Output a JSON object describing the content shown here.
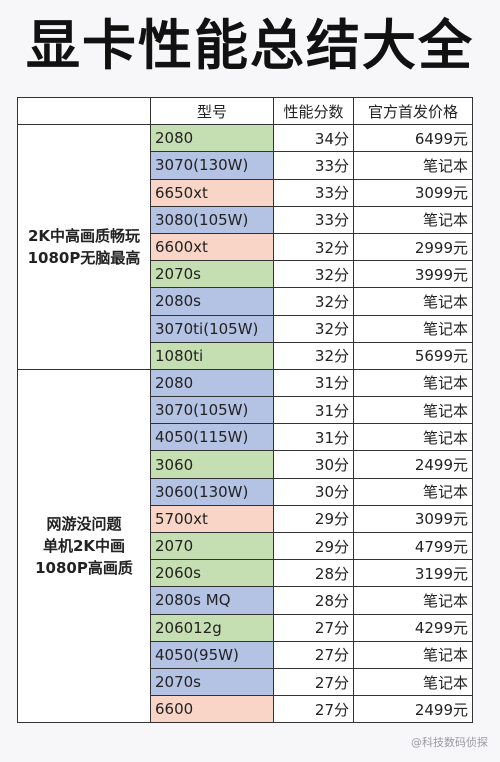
{
  "title": "显卡性能总结大全",
  "headers": [
    "型号",
    "性能分数",
    "官方首发价格"
  ],
  "groups": [
    {
      "label": [
        "2K中高画质畅玩",
        "1080P无脑最高"
      ],
      "rows": [
        {
          "model": "2080",
          "color": "green",
          "score": "34分",
          "price": "6499元"
        },
        {
          "model": "3070(130W)",
          "color": "blue",
          "score": "33分",
          "price": "笔记本"
        },
        {
          "model": "6650xt",
          "color": "orange",
          "score": "33分",
          "price": "3099元"
        },
        {
          "model": "3080(105W)",
          "color": "blue",
          "score": "33分",
          "price": "笔记本"
        },
        {
          "model": "6600xt",
          "color": "orange",
          "score": "32分",
          "price": "2999元"
        },
        {
          "model": "2070s",
          "color": "green",
          "score": "32分",
          "price": "3999元"
        },
        {
          "model": "2080s",
          "color": "blue",
          "score": "32分",
          "price": "笔记本"
        },
        {
          "model": "3070ti(105W)",
          "color": "blue",
          "score": "32分",
          "price": "笔记本"
        },
        {
          "model": "1080ti",
          "color": "green",
          "score": "32分",
          "price": "5699元"
        }
      ]
    },
    {
      "label": [
        "网游没问题",
        "单机2K中画",
        "1080P高画质"
      ],
      "rows": [
        {
          "model": "2080",
          "color": "blue",
          "score": "31分",
          "price": "笔记本"
        },
        {
          "model": "3070(105W)",
          "color": "blue",
          "score": "31分",
          "price": "笔记本"
        },
        {
          "model": "4050(115W)",
          "color": "blue",
          "score": "31分",
          "price": "笔记本"
        },
        {
          "model": "3060",
          "color": "green",
          "score": "30分",
          "price": "2499元"
        },
        {
          "model": "3060(130W)",
          "color": "blue",
          "score": "30分",
          "price": "笔记本"
        },
        {
          "model": "5700xt",
          "color": "orange",
          "score": "29分",
          "price": "3099元"
        },
        {
          "model": "2070",
          "color": "green",
          "score": "29分",
          "price": "4799元"
        },
        {
          "model": "2060s",
          "color": "green",
          "score": "28分",
          "price": "3199元"
        },
        {
          "model": "2080s MQ",
          "color": "blue",
          "score": "28分",
          "price": "笔记本"
        },
        {
          "model": "206012g",
          "color": "green",
          "score": "27分",
          "price": "4299元"
        },
        {
          "model": "4050(95W)",
          "color": "blue",
          "score": "27分",
          "price": "笔记本"
        },
        {
          "model": "2070s",
          "color": "blue",
          "score": "27分",
          "price": "笔记本"
        },
        {
          "model": "6600",
          "color": "orange",
          "score": "27分",
          "price": "2499元"
        }
      ]
    }
  ],
  "watermark": "@科技数码侦探"
}
